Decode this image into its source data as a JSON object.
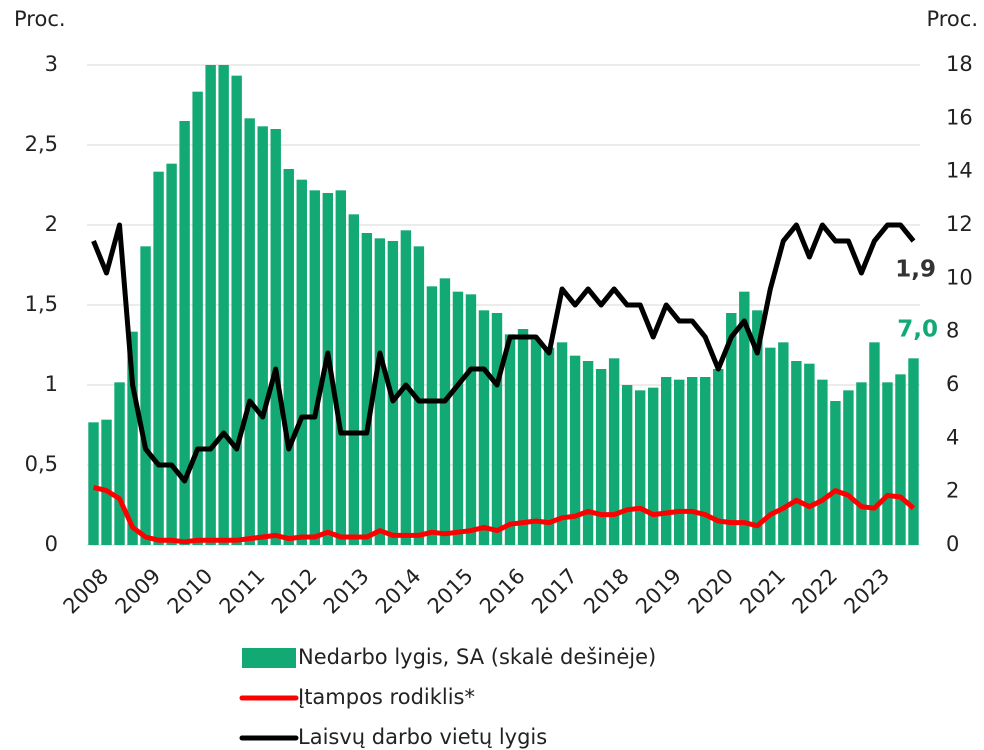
{
  "chart_data": {
    "type": "bar-line",
    "y_label": "Proc.",
    "y2_label": "Proc.",
    "categories": [
      "2008",
      null,
      null,
      null,
      "2009",
      null,
      null,
      null,
      "2010",
      null,
      null,
      null,
      "2011",
      null,
      null,
      null,
      "2012",
      null,
      null,
      null,
      "2013",
      null,
      null,
      null,
      "2014",
      null,
      null,
      null,
      "2015",
      null,
      null,
      null,
      "2016",
      null,
      null,
      null,
      "2017",
      null,
      null,
      null,
      "2018",
      null,
      null,
      null,
      "2019",
      null,
      null,
      null,
      "2020",
      null,
      null,
      null,
      "2021",
      null,
      null,
      null,
      "2022",
      null,
      null,
      null,
      "2023",
      null,
      null,
      null
    ],
    "series": [
      {
        "name": "Nedarbo lygis, SA (skalė dešinėje)",
        "type": "bar",
        "axis": "y2",
        "color": "#13a974",
        "values": [
          4.6,
          4.7,
          6.1,
          8.0,
          11.2,
          14.0,
          14.3,
          15.9,
          17.0,
          18.0,
          18.0,
          17.6,
          16.0,
          15.7,
          15.6,
          14.1,
          13.7,
          13.3,
          13.2,
          13.3,
          12.4,
          11.7,
          11.5,
          11.4,
          11.8,
          11.2,
          9.7,
          10.0,
          9.5,
          9.4,
          8.8,
          8.7,
          7.9,
          8.1,
          7.7,
          7.4,
          7.6,
          7.1,
          6.9,
          6.6,
          7.0,
          6.0,
          5.8,
          5.9,
          6.3,
          6.2,
          6.3,
          6.3,
          6.6,
          8.7,
          9.5,
          8.8,
          7.4,
          7.6,
          6.9,
          6.8,
          6.2,
          5.4,
          5.8,
          6.1,
          7.6,
          6.1,
          6.4,
          7.0
        ]
      },
      {
        "name": "Įtampos rodiklis*",
        "type": "line",
        "axis": "y",
        "color": "#ff0000",
        "values": [
          0.36,
          0.34,
          0.29,
          0.11,
          0.05,
          0.03,
          0.03,
          0.02,
          0.03,
          0.03,
          0.03,
          0.03,
          0.04,
          0.05,
          0.06,
          0.04,
          0.05,
          0.05,
          0.08,
          0.05,
          0.05,
          0.05,
          0.09,
          0.06,
          0.06,
          0.06,
          0.08,
          0.07,
          0.08,
          0.09,
          0.11,
          0.09,
          0.13,
          0.14,
          0.15,
          0.14,
          0.17,
          0.18,
          0.21,
          0.19,
          0.19,
          0.22,
          0.23,
          0.19,
          0.2,
          0.21,
          0.21,
          0.19,
          0.15,
          0.14,
          0.14,
          0.12,
          0.19,
          0.23,
          0.28,
          0.24,
          0.28,
          0.34,
          0.31,
          0.24,
          0.23,
          0.31,
          0.3,
          0.23
        ]
      },
      {
        "name": "Laisvų darbo vietų lygis",
        "type": "line",
        "axis": "y",
        "color": "#000000",
        "values": [
          1.9,
          1.7,
          2.0,
          1.0,
          0.6,
          0.5,
          0.5,
          0.4,
          0.6,
          0.6,
          0.7,
          0.6,
          0.9,
          0.8,
          1.1,
          0.6,
          0.8,
          0.8,
          1.2,
          0.7,
          0.7,
          0.7,
          1.2,
          0.9,
          1.0,
          0.9,
          0.9,
          0.9,
          1.0,
          1.1,
          1.1,
          1.0,
          1.3,
          1.3,
          1.3,
          1.2,
          1.6,
          1.5,
          1.6,
          1.5,
          1.6,
          1.5,
          1.5,
          1.3,
          1.5,
          1.4,
          1.4,
          1.3,
          1.1,
          1.3,
          1.4,
          1.2,
          1.6,
          1.9,
          2.0,
          1.8,
          2.0,
          1.9,
          1.9,
          1.7,
          1.9,
          2.0,
          2.0,
          1.9
        ]
      }
    ],
    "annotations": [
      {
        "text": "1,9",
        "color": "#333333"
      },
      {
        "text": "7,0",
        "color": "#13a974"
      }
    ],
    "ylim": [
      0,
      3
    ],
    "yticks": [
      0,
      {
        "value": 0.5,
        "label": "0,5"
      },
      1,
      {
        "value": 1.5,
        "label": "1,5"
      },
      2,
      {
        "value": 2.5,
        "label": "2,5"
      },
      3
    ],
    "y2lim": [
      0,
      18
    ],
    "y2ticks": [
      0,
      2,
      4,
      6,
      8,
      10,
      12,
      14,
      16,
      18
    ],
    "grid": true,
    "legend": "bottom"
  }
}
